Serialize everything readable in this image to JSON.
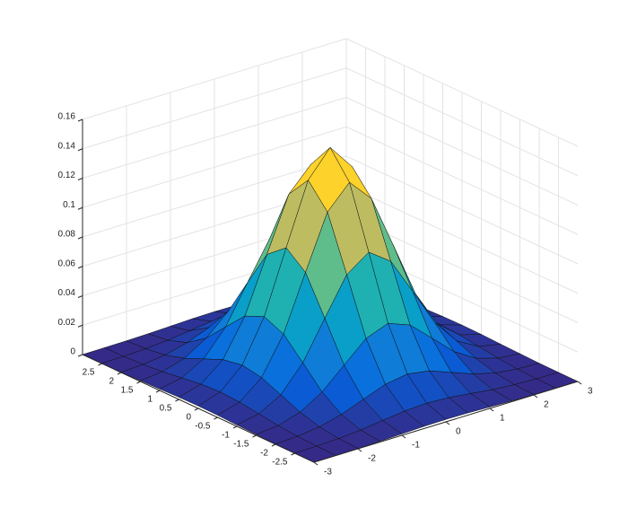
{
  "chart_data": {
    "type": "surface",
    "colormap": "parula",
    "grid": true,
    "x": [
      -3,
      -2.5,
      -2,
      -1.5,
      -1,
      -0.5,
      0,
      0.5,
      1,
      1.5,
      2,
      2.5,
      3
    ],
    "y": [
      -3,
      -2.5,
      -2,
      -1.5,
      -1,
      -0.5,
      0,
      0.5,
      1,
      1.5,
      2,
      2.5,
      3
    ],
    "z": [
      [
        0.0,
        0.0001,
        0.0002,
        0.0005,
        0.001,
        0.0015,
        0.0017,
        0.0015,
        0.001,
        0.0005,
        0.0002,
        0.0001,
        0.0
      ],
      [
        0.0001,
        0.0003,
        0.0009,
        0.0021,
        0.004,
        0.0058,
        0.0066,
        0.0058,
        0.004,
        0.0021,
        0.0009,
        0.0003,
        0.0001
      ],
      [
        0.0002,
        0.0009,
        0.0027,
        0.0066,
        0.0123,
        0.0179,
        0.0203,
        0.0179,
        0.0123,
        0.0066,
        0.0027,
        0.0009,
        0.0002
      ],
      [
        0.0006,
        0.0021,
        0.0066,
        0.0158,
        0.0295,
        0.043,
        0.0487,
        0.043,
        0.0295,
        0.0158,
        0.0066,
        0.0021,
        0.0006
      ],
      [
        0.001,
        0.004,
        0.0123,
        0.0295,
        0.0552,
        0.0803,
        0.091,
        0.0803,
        0.0552,
        0.0295,
        0.0123,
        0.004,
        0.001
      ],
      [
        0.0015,
        0.0058,
        0.0179,
        0.043,
        0.0803,
        0.1168,
        0.1324,
        0.1168,
        0.0803,
        0.043,
        0.0179,
        0.0058,
        0.0015
      ],
      [
        0.0017,
        0.0066,
        0.0203,
        0.0487,
        0.091,
        0.1324,
        0.15,
        0.1324,
        0.091,
        0.0487,
        0.0203,
        0.0066,
        0.0017
      ],
      [
        0.0015,
        0.0058,
        0.0179,
        0.043,
        0.0803,
        0.1168,
        0.1324,
        0.1168,
        0.0803,
        0.043,
        0.0179,
        0.0058,
        0.0015
      ],
      [
        0.001,
        0.004,
        0.0123,
        0.0295,
        0.0552,
        0.0803,
        0.091,
        0.0803,
        0.0552,
        0.0295,
        0.0123,
        0.004,
        0.001
      ],
      [
        0.0006,
        0.0021,
        0.0066,
        0.0158,
        0.0295,
        0.043,
        0.0487,
        0.043,
        0.0295,
        0.0158,
        0.0066,
        0.0021,
        0.0006
      ],
      [
        0.0002,
        0.0009,
        0.0027,
        0.0066,
        0.0123,
        0.0179,
        0.0203,
        0.0179,
        0.0123,
        0.0066,
        0.0027,
        0.0009,
        0.0002
      ],
      [
        0.0001,
        0.0003,
        0.0009,
        0.0021,
        0.004,
        0.0058,
        0.0066,
        0.0058,
        0.004,
        0.0021,
        0.0009,
        0.0003,
        0.0001
      ],
      [
        0.0,
        0.0001,
        0.0002,
        0.0005,
        0.001,
        0.0015,
        0.0017,
        0.0015,
        0.001,
        0.0005,
        0.0002,
        0.0001,
        0.0
      ]
    ],
    "xlim": [
      -3,
      3
    ],
    "ylim": [
      -3,
      3
    ],
    "zlim": [
      0,
      0.16
    ],
    "xticks": [
      -3,
      -2,
      -1,
      0,
      1,
      2,
      3
    ],
    "yticks": [
      -2.5,
      -2,
      -1.5,
      -1,
      -0.5,
      0,
      0.5,
      1,
      1.5,
      2,
      2.5
    ],
    "zticks": [
      0,
      0.02,
      0.04,
      0.06,
      0.08,
      0.1,
      0.12,
      0.14,
      0.16
    ]
  }
}
